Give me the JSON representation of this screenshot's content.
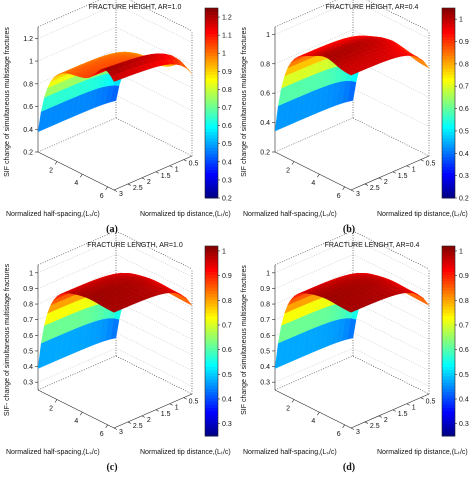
{
  "chart_data": [
    {
      "type": "surface",
      "panel_label": "(a)",
      "title": "FRACTURE HEIGHT, AR=1.0",
      "zlabel": "SIF change of simultaneous multistage fractures",
      "xlabel": "Normalized half-spacing,(Lₛ/c)",
      "ylabel": "Normalized tip distance,(Lₜ/c)",
      "x_ticks": [
        "2",
        "4",
        "6"
      ],
      "y_ticks": [
        "0.5",
        "1",
        "1.5",
        "2",
        "2.5",
        "3"
      ],
      "z_ticks": [
        "0.2",
        "0.4",
        "0.6",
        "0.8",
        "1",
        "1.2"
      ],
      "colorbar_ticks": [
        "0.2",
        "0.3",
        "0.4",
        "0.5",
        "0.6",
        "0.7",
        "0.8",
        "0.9",
        "1",
        "1.1",
        "1.2"
      ],
      "colorbar_range": [
        0.2,
        1.25
      ],
      "x_range": [
        0.5,
        6.5
      ],
      "y_range": [
        0.2,
        3
      ],
      "z_range": [
        0.2,
        1.3
      ],
      "surface_model": {
        "base": 0.28,
        "plateau": 1.05,
        "peak": 1.22,
        "peak_x": 5.8
      }
    },
    {
      "type": "surface",
      "panel_label": "(b)",
      "title": "FRACTURE HEIGHT, AR=0.4",
      "zlabel": "SIF change of simultaneous multistage fractures",
      "xlabel": "Normalized half-spacing,(Lₛ/c)",
      "ylabel": "Normalized tip distance,(Lₜ/c)",
      "x_ticks": [
        "2",
        "4",
        "6"
      ],
      "y_ticks": [
        "0.5",
        "1",
        "1.5",
        "2",
        "2.5",
        "3"
      ],
      "z_ticks": [
        "0.2",
        "0.4",
        "0.6",
        "0.8",
        "1"
      ],
      "colorbar_ticks": [
        "0.2",
        "0.3",
        "0.4",
        "0.5",
        "0.6",
        "0.7",
        "0.8",
        "0.9",
        "1"
      ],
      "colorbar_range": [
        0.2,
        1.05
      ],
      "x_range": [
        0.5,
        6.5
      ],
      "y_range": [
        0.2,
        3
      ],
      "z_range": [
        0.2,
        1.05
      ],
      "surface_model": {
        "base": 0.25,
        "plateau": 0.98,
        "peak": 1.02,
        "peak_x": 4.5
      }
    },
    {
      "type": "surface",
      "panel_label": "(c)",
      "title": "FRACTURE LENGTH, AR=1.0",
      "zlabel": "SIF- change of simultaneous multistage fractures",
      "xlabel": "Normalized half-spacing,(Lₛ/c)",
      "ylabel": "Normalized tip distance,(Lₜ/c)",
      "x_ticks": [
        "2",
        "4",
        "6"
      ],
      "y_ticks": [
        "0.5",
        "1",
        "1.5",
        "2",
        "2.5",
        "3"
      ],
      "z_ticks": [
        "0.3",
        "0.4",
        "0.5",
        "0.6",
        "0.7",
        "0.8",
        "0.9",
        "1"
      ],
      "colorbar_ticks": [
        "0.3",
        "0.4",
        "0.5",
        "0.6",
        "0.7",
        "0.8",
        "0.9",
        "1"
      ],
      "colorbar_range": [
        0.25,
        1.02
      ],
      "x_range": [
        0.5,
        6.5
      ],
      "y_range": [
        0.2,
        3
      ],
      "z_range": [
        0.25,
        1.05
      ],
      "surface_model": {
        "base": 0.3,
        "plateau": 0.99,
        "peak": 1.0,
        "peak_x": 4.5
      }
    },
    {
      "type": "surface",
      "panel_label": "(d)",
      "title": "FRACTURE LENGHT, AR=0.4",
      "zlabel": "SIF change of simultaneous multistage fractures",
      "xlabel": "Normalized half-spacing,(Lₛ/c)",
      "ylabel": "Normalized tip distance,(Lₜ/c)",
      "x_ticks": [
        "2",
        "4",
        "6"
      ],
      "y_ticks": [
        "0.5",
        "1",
        "1.5",
        "2",
        "2.5",
        "3"
      ],
      "z_ticks": [
        "0.3",
        "0.4",
        "0.5",
        "0.6",
        "0.7",
        "0.8",
        "0.9",
        "1"
      ],
      "colorbar_ticks": [
        "0.3",
        "0.4",
        "0.5",
        "0.6",
        "0.7",
        "0.8",
        "0.9",
        "1"
      ],
      "colorbar_range": [
        0.25,
        1.02
      ],
      "x_range": [
        0.5,
        6.5
      ],
      "y_range": [
        0.2,
        3
      ],
      "z_range": [
        0.25,
        1.05
      ],
      "surface_model": {
        "base": 0.3,
        "plateau": 0.99,
        "peak": 1.0,
        "peak_x": 4.5
      }
    }
  ]
}
